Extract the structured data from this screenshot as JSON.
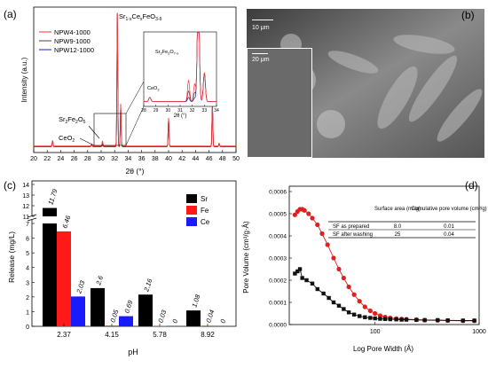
{
  "panel_a": {
    "label": "(a)",
    "legend": [
      "NPW4-1000",
      "NPW9-1000",
      "NPW12-1000"
    ],
    "series_colors": [
      "#ff3333",
      "#444444",
      "#1e1ed2"
    ],
    "peak_main_label": "Sr",
    "peak_main_sub1": "1-x",
    "peak_main_mid": "Ce",
    "peak_main_sub2": "x",
    "peak_main_end": "FeO",
    "peak_main_sub3": "3-δ",
    "peak_sr2fe2o5_pre": "Sr",
    "peak_sr2fe2o5_s1": "2",
    "peak_sr2fe2o5_fe": "Fe",
    "peak_sr2fe2o5_s2": "2",
    "peak_sr2fe2o5_o": "O",
    "peak_sr2fe2o5_s3": "5",
    "peak_ceo2_pre": "CeO",
    "peak_ceo2_s": "2",
    "inset_sr_pre": "Sr",
    "inset_sr_s1": "2",
    "inset_sr_fe": "Fe",
    "inset_sr_s2": "2",
    "inset_sr_o": "O",
    "inset_sr_s3": "7-x",
    "inset_ceo2_pre": "CeO",
    "inset_ceo2_s": "2",
    "inset_xlabel": "2θ (°)",
    "inset_ticks": [
      "28",
      "29",
      "30",
      "31",
      "32",
      "33",
      "34"
    ],
    "ylabel": "Intensity (a.u.)",
    "xlabel": "2θ (°)",
    "xticks": [
      "20",
      "22",
      "24",
      "26",
      "28",
      "30",
      "32",
      "34",
      "36",
      "38",
      "40",
      "42",
      "44",
      "46",
      "48",
      "50"
    ]
  },
  "panel_b": {
    "label": "(b)",
    "scale_outer": "10 μm",
    "scale_inner": "20 μm"
  },
  "chart_data": [
    {
      "type": "line",
      "panel": "a",
      "xlabel": "2θ (°)",
      "ylabel": "Intensity (a.u.)",
      "xlim": [
        20,
        50
      ],
      "series": [
        {
          "name": "NPW4-1000",
          "x": [
            20,
            23,
            28.5,
            30.3,
            32.4,
            33.0,
            40.0,
            46.5,
            50
          ],
          "y": [
            0.03,
            0.05,
            0.04,
            0.08,
            1.0,
            0.35,
            0.2,
            0.3,
            0.03
          ]
        },
        {
          "name": "NPW9-1000",
          "x": [
            20,
            23,
            28.5,
            30.3,
            32.4,
            33.0,
            40.0,
            46.5,
            50
          ],
          "y": [
            0.03,
            0.05,
            0.04,
            0.07,
            1.0,
            0.32,
            0.2,
            0.3,
            0.03
          ]
        },
        {
          "name": "NPW12-1000",
          "x": [
            20,
            23,
            28.5,
            30.3,
            32.4,
            33.0,
            40.0,
            46.5,
            50
          ],
          "y": [
            0.03,
            0.05,
            0.03,
            0.06,
            1.0,
            0.3,
            0.2,
            0.3,
            0.03
          ]
        }
      ]
    },
    {
      "type": "bar",
      "panel": "c",
      "xlabel": "pH",
      "ylabel": "Release (mg/L)",
      "categories": [
        "2.37",
        "4.15",
        "5.78",
        "8.92"
      ],
      "series": [
        {
          "name": "Sr",
          "values": [
            11.79,
            2.6,
            2.16,
            1.08
          ]
        },
        {
          "name": "Fe",
          "values": [
            6.46,
            0.05,
            0.03,
            0.04
          ]
        },
        {
          "name": "Ce",
          "values": [
            2.03,
            0.69,
            0,
            0
          ]
        }
      ],
      "value_labels": [
        [
          "11.79",
          "6.46",
          "2.03"
        ],
        [
          "2.6",
          "0.05",
          "0.69"
        ],
        [
          "2.16",
          "0.03",
          "0"
        ],
        [
          "1.08",
          "0.04",
          "0"
        ]
      ],
      "yticks": [
        "0",
        "1",
        "2",
        "3",
        "4",
        "5",
        "6",
        "7",
        "11",
        "12",
        "13",
        "14"
      ],
      "colors": [
        "#000000",
        "#ff1a1a",
        "#1a1aff"
      ],
      "label": "(c)"
    },
    {
      "type": "scatter",
      "panel": "d",
      "xlabel": "Log Pore Width (Å)",
      "ylabel": "Pore Volume (cm³/g·Å)",
      "yticks": [
        "0.0000",
        "0.0001",
        "0.0002",
        "0.0003",
        "0.0004",
        "0.0005",
        "0.0006"
      ],
      "xticks": [
        "100",
        "1000"
      ],
      "label": "(d)",
      "series": [
        {
          "name": "SF as prepared",
          "color": "#e02020",
          "x": [
            17,
            18,
            19,
            20,
            21,
            23,
            25,
            28,
            31,
            35,
            40,
            45,
            50,
            56,
            63,
            71,
            80,
            90,
            100,
            112,
            125,
            140,
            160,
            180,
            200,
            250,
            300,
            400,
            500,
            700,
            900
          ],
          "y": [
            0.000495,
            0.00051,
            0.00052,
            0.00052,
            0.000515,
            0.0005,
            0.00048,
            0.00045,
            0.00041,
            0.00036,
            0.0003,
            0.00025,
            0.00021,
            0.00017,
            0.000135,
            0.000105,
            8e-05,
            6.2e-05,
            5e-05,
            4e-05,
            3.4e-05,
            3e-05,
            2.7e-05,
            2.5e-05,
            2.4e-05,
            2.2e-05,
            2e-05,
            1.9e-05,
            1.8e-05,
            1.7e-05,
            1.7e-05
          ]
        },
        {
          "name": "SF after washing",
          "color": "#111111",
          "x": [
            17,
            18,
            19,
            20,
            22,
            25,
            28,
            32,
            36,
            40,
            45,
            50,
            56,
            63,
            71,
            80,
            90,
            100,
            112,
            125,
            140,
            160,
            180,
            200,
            250,
            300,
            400,
            500,
            700,
            900
          ],
          "y": [
            0.00023,
            0.00024,
            0.00025,
            0.00021,
            0.0002,
            0.000185,
            0.00016,
            0.00014,
            0.00012,
            0.0001,
            8.5e-05,
            7e-05,
            5.5e-05,
            4.5e-05,
            3.8e-05,
            3.3e-05,
            3e-05,
            2.8e-05,
            2.6e-05,
            2.5e-05,
            2.4e-05,
            2.3e-05,
            2.2e-05,
            2.2e-05,
            2.1e-05,
            2e-05,
            2e-05,
            1.9e-05,
            1.8e-05,
            1.8e-05
          ]
        }
      ],
      "table": {
        "headers": [
          "",
          "Surface area (m²/g)",
          "Cumulative pore volume (cm³/g)"
        ],
        "rows": [
          [
            "SF as prepared",
            "8.0",
            "0.01"
          ],
          [
            "SF after washing",
            "25",
            "0.04"
          ]
        ]
      }
    }
  ]
}
